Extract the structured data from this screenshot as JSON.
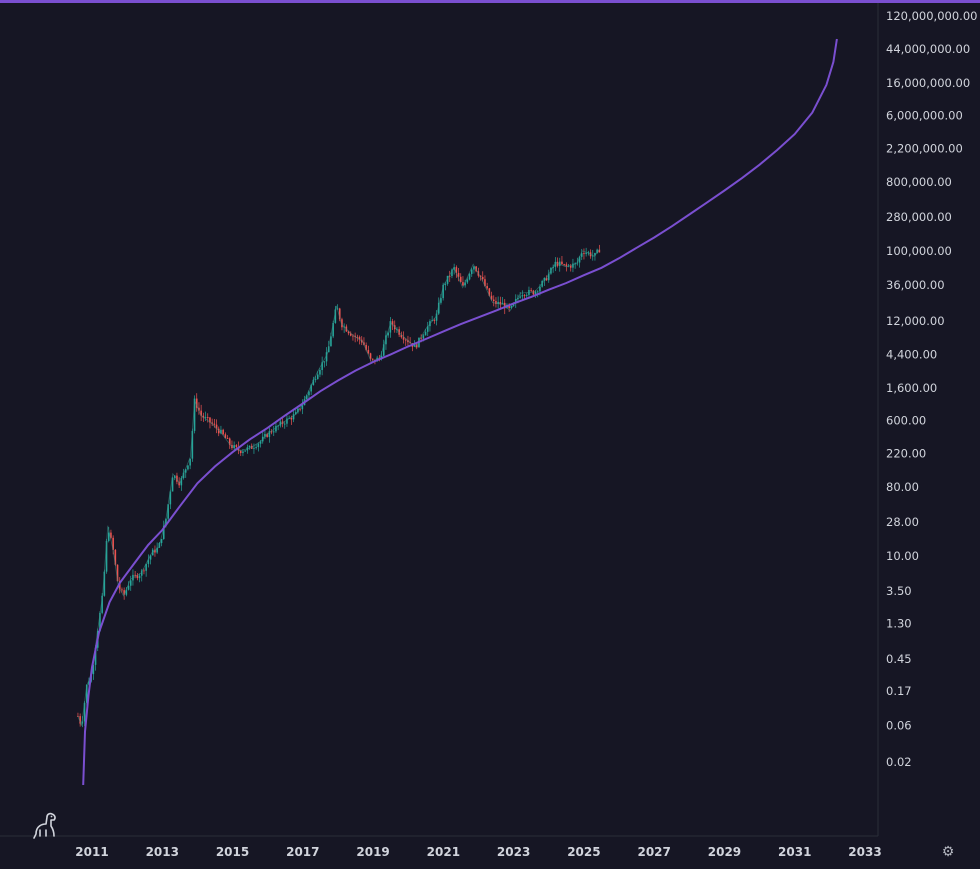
{
  "chart_data": {
    "type": "line",
    "scale": "log",
    "y_ticks": [
      {
        "value": 120000000,
        "label": "120,000,000.00"
      },
      {
        "value": 44000000,
        "label": "44,000,000.00"
      },
      {
        "value": 16000000,
        "label": "16,000,000.00"
      },
      {
        "value": 6000000,
        "label": "6,000,000.00"
      },
      {
        "value": 2200000,
        "label": "2,200,000.00"
      },
      {
        "value": 800000,
        "label": "800,000.00"
      },
      {
        "value": 280000,
        "label": "280,000.00"
      },
      {
        "value": 100000,
        "label": "100,000.00"
      },
      {
        "value": 36000,
        "label": "36,000.00"
      },
      {
        "value": 12000,
        "label": "12,000.00"
      },
      {
        "value": 4400,
        "label": "4,400.00"
      },
      {
        "value": 1600,
        "label": "1,600.00"
      },
      {
        "value": 600,
        "label": "600.00"
      },
      {
        "value": 220,
        "label": "220.00"
      },
      {
        "value": 80,
        "label": "80.00"
      },
      {
        "value": 28,
        "label": "28.00"
      },
      {
        "value": 10,
        "label": "10.00"
      },
      {
        "value": 3.5,
        "label": "3.50"
      },
      {
        "value": 1.3,
        "label": "1.30"
      },
      {
        "value": 0.45,
        "label": "0.45"
      },
      {
        "value": 0.17,
        "label": "0.17"
      },
      {
        "value": 0.06,
        "label": "0.06"
      },
      {
        "value": 0.02,
        "label": "0.02"
      }
    ],
    "x_ticks": [
      "2011",
      "2013",
      "2015",
      "2017",
      "2019",
      "2021",
      "2023",
      "2025",
      "2027",
      "2029",
      "2031",
      "2033"
    ],
    "price_series": [
      [
        2010.6,
        0.08
      ],
      [
        2010.7,
        0.06
      ],
      [
        2010.85,
        0.2
      ],
      [
        2011.0,
        0.3
      ],
      [
        2011.15,
        1.0
      ],
      [
        2011.3,
        3
      ],
      [
        2011.45,
        25
      ],
      [
        2011.6,
        12
      ],
      [
        2011.75,
        4
      ],
      [
        2011.9,
        3
      ],
      [
        2012.1,
        5
      ],
      [
        2012.4,
        6
      ],
      [
        2012.7,
        11
      ],
      [
        2012.9,
        13
      ],
      [
        2013.1,
        30
      ],
      [
        2013.3,
        120
      ],
      [
        2013.5,
        90
      ],
      [
        2013.8,
        200
      ],
      [
        2013.92,
        1100
      ],
      [
        2014.1,
        700
      ],
      [
        2014.4,
        550
      ],
      [
        2014.7,
        400
      ],
      [
        2014.95,
        280
      ],
      [
        2015.2,
        240
      ],
      [
        2015.5,
        260
      ],
      [
        2015.8,
        320
      ],
      [
        2016.0,
        400
      ],
      [
        2016.4,
        550
      ],
      [
        2016.8,
        720
      ],
      [
        2017.0,
        1000
      ],
      [
        2017.4,
        2500
      ],
      [
        2017.7,
        4500
      ],
      [
        2017.96,
        19000
      ],
      [
        2018.1,
        11000
      ],
      [
        2018.4,
        8000
      ],
      [
        2018.7,
        6500
      ],
      [
        2018.95,
        3500
      ],
      [
        2019.2,
        4000
      ],
      [
        2019.5,
        11500
      ],
      [
        2019.8,
        8000
      ],
      [
        2020.2,
        5500
      ],
      [
        2020.5,
        9500
      ],
      [
        2020.8,
        14000
      ],
      [
        2021.0,
        35000
      ],
      [
        2021.3,
        60000
      ],
      [
        2021.55,
        33000
      ],
      [
        2021.85,
        67000
      ],
      [
        2022.1,
        42000
      ],
      [
        2022.4,
        21000
      ],
      [
        2022.7,
        20000
      ],
      [
        2022.9,
        16500
      ],
      [
        2023.2,
        28000
      ],
      [
        2023.6,
        29000
      ],
      [
        2023.9,
        42000
      ],
      [
        2024.2,
        70000
      ],
      [
        2024.5,
        62000
      ],
      [
        2024.8,
        68000
      ],
      [
        2024.95,
        100000
      ],
      [
        2025.1,
        95000
      ],
      [
        2025.3,
        85000
      ],
      [
        2025.45,
        106000
      ]
    ],
    "curve_series": [
      [
        2010.75,
        0.01
      ],
      [
        2010.8,
        0.05
      ],
      [
        2010.9,
        0.15
      ],
      [
        2011.0,
        0.35
      ],
      [
        2011.2,
        1.0
      ],
      [
        2011.5,
        2.5
      ],
      [
        2011.8,
        4.5
      ],
      [
        2012.2,
        8
      ],
      [
        2012.6,
        14
      ],
      [
        2013.0,
        22
      ],
      [
        2013.5,
        45
      ],
      [
        2014.0,
        90
      ],
      [
        2014.5,
        150
      ],
      [
        2015.0,
        230
      ],
      [
        2015.5,
        340
      ],
      [
        2016.0,
        480
      ],
      [
        2016.5,
        700
      ],
      [
        2017.0,
        1000
      ],
      [
        2017.5,
        1450
      ],
      [
        2018.0,
        2000
      ],
      [
        2018.5,
        2700
      ],
      [
        2019.0,
        3500
      ],
      [
        2019.5,
        4400
      ],
      [
        2020.0,
        5600
      ],
      [
        2020.5,
        7000
      ],
      [
        2021.0,
        8800
      ],
      [
        2021.5,
        11000
      ],
      [
        2022.0,
        13500
      ],
      [
        2022.5,
        16500
      ],
      [
        2023.0,
        20500
      ],
      [
        2023.5,
        25000
      ],
      [
        2024.0,
        31000
      ],
      [
        2024.5,
        38000
      ],
      [
        2025.0,
        48000
      ],
      [
        2025.5,
        60000
      ],
      [
        2026.0,
        80000
      ],
      [
        2026.5,
        110000
      ],
      [
        2027.0,
        150000
      ],
      [
        2027.5,
        210000
      ],
      [
        2028.0,
        300000
      ],
      [
        2028.5,
        430000
      ],
      [
        2029.0,
        620000
      ],
      [
        2029.5,
        900000
      ],
      [
        2030.0,
        1350000
      ],
      [
        2030.5,
        2100000
      ],
      [
        2031.0,
        3400000
      ],
      [
        2031.5,
        6500000
      ],
      [
        2031.9,
        15000000
      ],
      [
        2032.1,
        30000000
      ],
      [
        2032.2,
        60000000
      ]
    ],
    "colors": {
      "background": "#161624",
      "curve": "#7a4fd0",
      "up_candle": "#26a69a",
      "down_candle": "#ef5350",
      "axis_text": "#d1d4dc",
      "axis_line": "#2a2e39"
    },
    "grid": false
  },
  "icons": {
    "logo": "dinosaur-logo-icon",
    "settings": "settings-gear-icon"
  }
}
